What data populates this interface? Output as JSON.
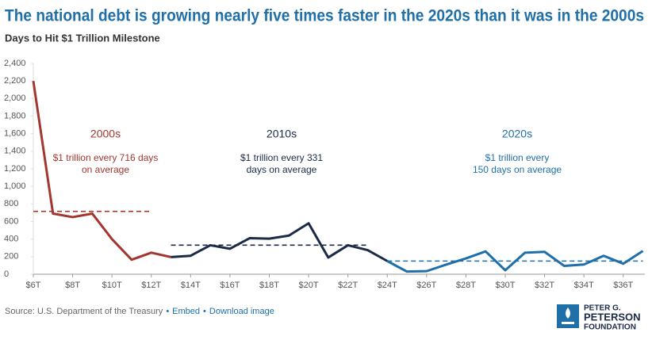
{
  "header": {
    "title": "The national debt is growing nearly five times faster in the 2020s than it was in the 2000s"
  },
  "chart_data": {
    "type": "line",
    "subtitle": "Days to Hit $1 Trillion Milestone",
    "xlim": [
      6,
      37.1
    ],
    "ylim": [
      0,
      2400
    ],
    "xticks": [
      {
        "value": 6,
        "label": "$6T"
      },
      {
        "value": 8,
        "label": "$8T"
      },
      {
        "value": 10,
        "label": "$10T"
      },
      {
        "value": 12,
        "label": "$12T"
      },
      {
        "value": 14,
        "label": "$14T"
      },
      {
        "value": 16,
        "label": "$16T"
      },
      {
        "value": 18,
        "label": "$18T"
      },
      {
        "value": 20,
        "label": "$20T"
      },
      {
        "value": 22,
        "label": "$22T"
      },
      {
        "value": 24,
        "label": "$24T"
      },
      {
        "value": 26,
        "label": "$26T"
      },
      {
        "value": 28,
        "label": "$28T"
      },
      {
        "value": 30,
        "label": "$30T"
      },
      {
        "value": 32,
        "label": "$32T"
      },
      {
        "value": 34,
        "label": "$34T"
      },
      {
        "value": 36,
        "label": "$36T"
      }
    ],
    "yticks": [
      0,
      200,
      400,
      600,
      800,
      {
        "value": 1000,
        "label": "1,000"
      },
      {
        "value": 1200,
        "label": "1,200"
      },
      {
        "value": 1400,
        "label": "1,400"
      },
      {
        "value": 1600,
        "label": "1,600"
      },
      {
        "value": 1800,
        "label": "1,800"
      },
      {
        "value": 2000,
        "label": "2,000"
      },
      {
        "value": 2200,
        "label": "2,200"
      },
      {
        "value": 2400,
        "label": "2,400"
      }
    ],
    "grid": false,
    "series": [
      {
        "name": "2000s",
        "color": "#a3372f",
        "note": [
          "$1 trillion every 716 days",
          "on average"
        ],
        "x": [
          6,
          7,
          8,
          9,
          10,
          11,
          12,
          13
        ],
        "values": [
          2200,
          690,
          650,
          690,
          400,
          165,
          245,
          195
        ],
        "average": 716,
        "average_x": [
          6,
          12
        ]
      },
      {
        "name": "2010s",
        "color": "#1b2a47",
        "note": [
          "$1 trillion every 331",
          "days on average"
        ],
        "x": [
          13,
          14,
          15,
          16,
          17,
          18,
          19,
          20,
          21,
          22,
          23,
          24
        ],
        "values": [
          195,
          210,
          330,
          290,
          410,
          405,
          440,
          580,
          190,
          330,
          275,
          150
        ],
        "average": 331,
        "average_x": [
          13,
          23
        ]
      },
      {
        "name": "2020s",
        "color": "#1f6fa8",
        "note": [
          "$1 trillion every",
          "150 days on average"
        ],
        "x": [
          24,
          25,
          26,
          27,
          28,
          29,
          30,
          31,
          32,
          33,
          34,
          35,
          36,
          37
        ],
        "values": [
          150,
          30,
          35,
          110,
          180,
          260,
          45,
          245,
          255,
          95,
          110,
          210,
          120,
          265
        ],
        "average": 150,
        "average_x": [
          24,
          37
        ]
      }
    ]
  },
  "footer": {
    "source": "Source: U.S. Department of the Treasury",
    "links": [
      "Embed",
      "Download image"
    ],
    "logo": [
      "PETER G.",
      "PETERSON",
      "FOUNDATION"
    ]
  }
}
